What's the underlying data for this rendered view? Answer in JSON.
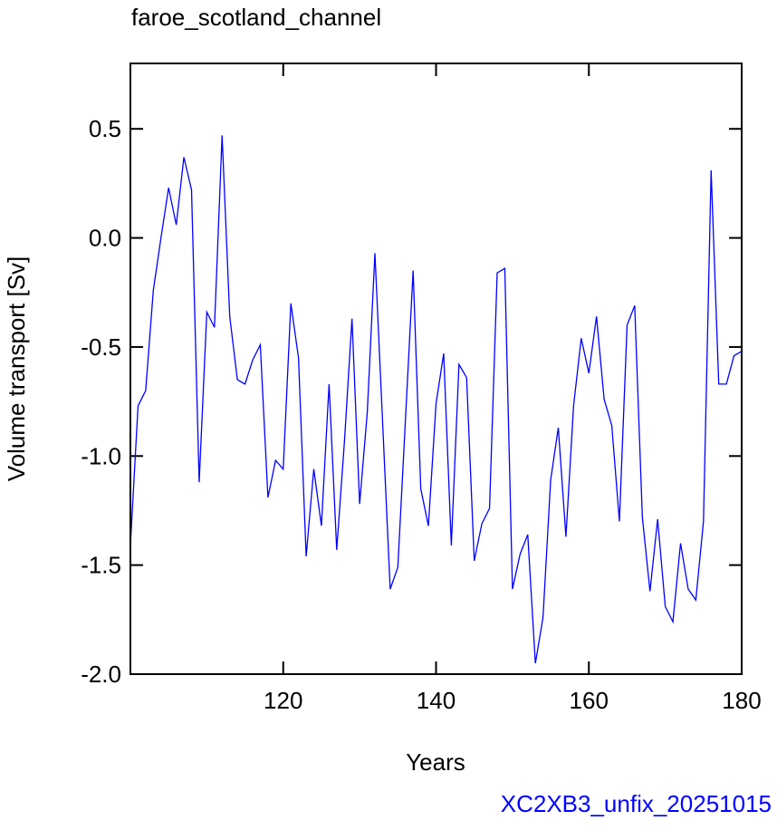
{
  "chart_data": {
    "type": "line",
    "title": "faroe_scotland_channel",
    "x_label": "Years",
    "y_label": "Volume transport [Sv]",
    "annotation": "XC2XB3_unfix_20251015",
    "x": [
      100,
      101,
      102,
      103,
      104,
      105,
      106,
      107,
      108,
      109,
      110,
      111,
      112,
      113,
      114,
      115,
      116,
      117,
      118,
      119,
      120,
      121,
      122,
      123,
      124,
      125,
      126,
      127,
      128,
      129,
      130,
      131,
      132,
      133,
      134,
      135,
      136,
      137,
      138,
      139,
      140,
      141,
      142,
      143,
      144,
      145,
      146,
      147,
      148,
      149,
      150,
      151,
      152,
      153,
      154,
      155,
      156,
      157,
      158,
      159,
      160,
      161,
      162,
      163,
      164,
      165,
      166,
      167,
      168,
      169,
      170,
      171,
      172,
      173,
      174,
      175,
      176,
      177,
      178,
      179,
      180
    ],
    "series": [
      {
        "name": "faroe_scotland_channel",
        "color": "#0000ff",
        "values": [
          -1.41,
          -0.77,
          -0.7,
          -0.24,
          0.0,
          0.23,
          0.06,
          0.37,
          0.22,
          -1.12,
          -0.34,
          -0.41,
          0.47,
          -0.36,
          -0.65,
          -0.67,
          -0.56,
          -0.49,
          -1.19,
          -1.02,
          -1.06,
          -0.3,
          -0.55,
          -1.46,
          -1.06,
          -1.32,
          -0.67,
          -1.43,
          -0.94,
          -0.37,
          -1.22,
          -0.8,
          -0.07,
          -0.84,
          -1.61,
          -1.51,
          -0.83,
          -0.15,
          -1.15,
          -1.32,
          -0.76,
          -0.53,
          -1.41,
          -0.58,
          -0.64,
          -1.48,
          -1.31,
          -1.24,
          -0.16,
          -0.14,
          -1.61,
          -1.45,
          -1.36,
          -1.95,
          -1.74,
          -1.11,
          -0.87,
          -1.37,
          -0.77,
          -0.46,
          -0.62,
          -0.36,
          -0.74,
          -0.86,
          -1.3,
          -0.4,
          -0.31,
          -1.28,
          -1.62,
          -1.29,
          -1.69,
          -1.76,
          -1.4,
          -1.61,
          -1.66,
          -1.3,
          0.31,
          -0.67,
          -0.67,
          -0.54,
          -0.52
        ]
      }
    ],
    "xlim": [
      100,
      180
    ],
    "xticks": [
      120,
      140,
      160,
      180
    ],
    "ylim": [
      -2.0,
      0.8
    ],
    "yticks": [
      0.5,
      {
        "value": 0,
        "label": "0.0"
      },
      -0.5,
      {
        "value": -1,
        "label": "-1.0"
      },
      -1.5,
      {
        "value": -2,
        "label": "-2.0"
      }
    ]
  }
}
